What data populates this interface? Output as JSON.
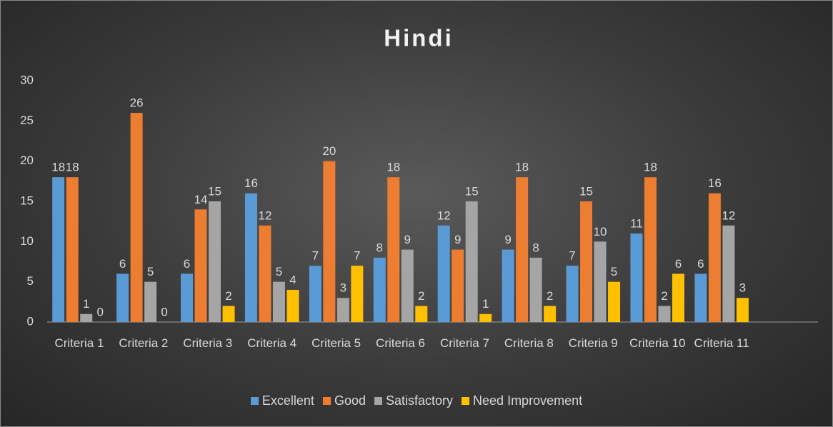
{
  "chart_data": {
    "type": "bar",
    "title": "Hindi",
    "categories": [
      "Criteria 1",
      "Criteria 2",
      "Criteria 3",
      "Criteria 4",
      "Criteria 5",
      "Criteria 6",
      "Criteria 7",
      "Criteria 8",
      "Criteria 9",
      "Criteria 10",
      "Criteria 11",
      null
    ],
    "series": [
      {
        "name": "Excellent",
        "color": "#5b9bd5",
        "values": [
          18,
          6,
          6,
          16,
          7,
          8,
          12,
          9,
          7,
          11,
          6,
          null
        ]
      },
      {
        "name": "Good",
        "color": "#ed7d31",
        "values": [
          18,
          26,
          14,
          12,
          20,
          18,
          9,
          18,
          15,
          18,
          16,
          null
        ]
      },
      {
        "name": "Satisfactory",
        "color": "#a5a5a5",
        "values": [
          1,
          5,
          15,
          5,
          3,
          9,
          15,
          8,
          10,
          2,
          12,
          null
        ]
      },
      {
        "name": "Need Improvement",
        "color": "#ffc000",
        "values": [
          0,
          0,
          2,
          4,
          7,
          2,
          1,
          2,
          5,
          6,
          3,
          null
        ]
      }
    ],
    "ylim": [
      0,
      30
    ],
    "yticks": [
      0,
      5,
      10,
      15,
      20,
      25,
      30
    ],
    "grid": false,
    "legend": "bottom"
  }
}
